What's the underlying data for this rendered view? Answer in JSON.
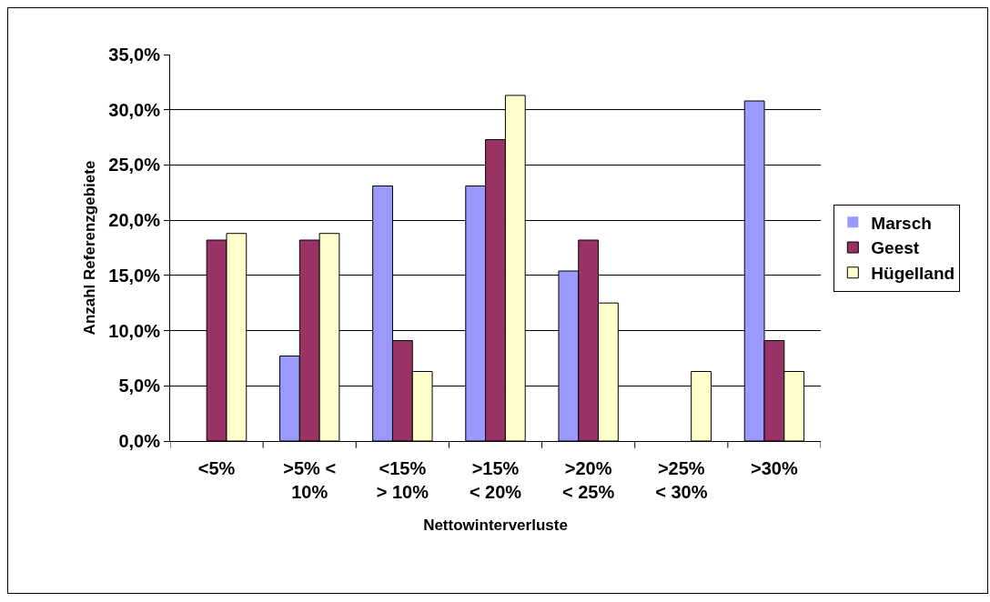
{
  "chart_data": {
    "type": "bar",
    "xlabel": "Nettowinterverluste",
    "ylabel": "Anzahl Referenzgebiete",
    "categories": [
      "<5%",
      ">5% <\n10%",
      "<15%\n> 10%",
      ">15%\n< 20%",
      ">20%\n< 25%",
      ">25%\n< 30%",
      ">30%"
    ],
    "series": [
      {
        "name": "Marsch",
        "color": "#9999ff",
        "values": [
          0,
          7.7,
          23.1,
          23.1,
          15.4,
          0,
          30.8
        ]
      },
      {
        "name": "Geest",
        "color": "#993366",
        "values": [
          18.2,
          18.2,
          9.1,
          27.3,
          18.2,
          0,
          9.1
        ]
      },
      {
        "name": "Hügelland",
        "color": "#ffffcc",
        "values": [
          18.8,
          18.8,
          6.3,
          31.3,
          12.5,
          6.3,
          6.3
        ]
      }
    ],
    "ylim": [
      0,
      35
    ],
    "yticks": [
      {
        "value": 0,
        "label": "0,0%"
      },
      {
        "value": 5,
        "label": "5,0%"
      },
      {
        "value": 10,
        "label": "10,0%"
      },
      {
        "value": 15,
        "label": "15,0%"
      },
      {
        "value": 20,
        "label": "20,0%"
      },
      {
        "value": 25,
        "label": "25,0%"
      },
      {
        "value": 30,
        "label": "30,0%"
      },
      {
        "value": 35,
        "label": "35,0%"
      }
    ],
    "grid": "y",
    "legend": "right"
  }
}
